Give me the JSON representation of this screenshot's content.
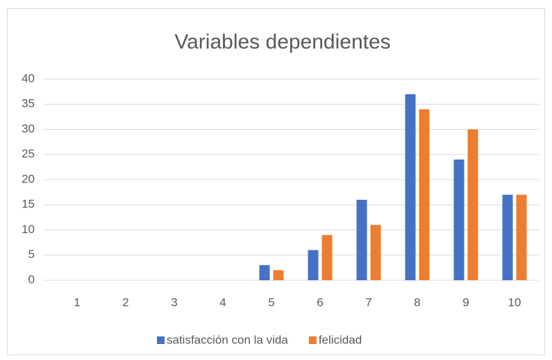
{
  "chart_data": {
    "type": "bar",
    "title": "Variables dependientes",
    "categories": [
      "1",
      "2",
      "3",
      "4",
      "5",
      "6",
      "7",
      "8",
      "9",
      "10"
    ],
    "series": [
      {
        "name": "satisfacción con la vida",
        "color": "#4472c4",
        "values": [
          0,
          0,
          0,
          0,
          3,
          6,
          16,
          37,
          24,
          17
        ]
      },
      {
        "name": "felicidad",
        "color": "#ed7d31",
        "values": [
          0,
          0,
          0,
          0,
          2,
          9,
          11,
          34,
          30,
          17
        ]
      }
    ],
    "ylim": [
      0,
      40
    ],
    "yticks": [
      0,
      5,
      10,
      15,
      20,
      25,
      30,
      35,
      40
    ],
    "grid": true,
    "legend": "bottom"
  }
}
